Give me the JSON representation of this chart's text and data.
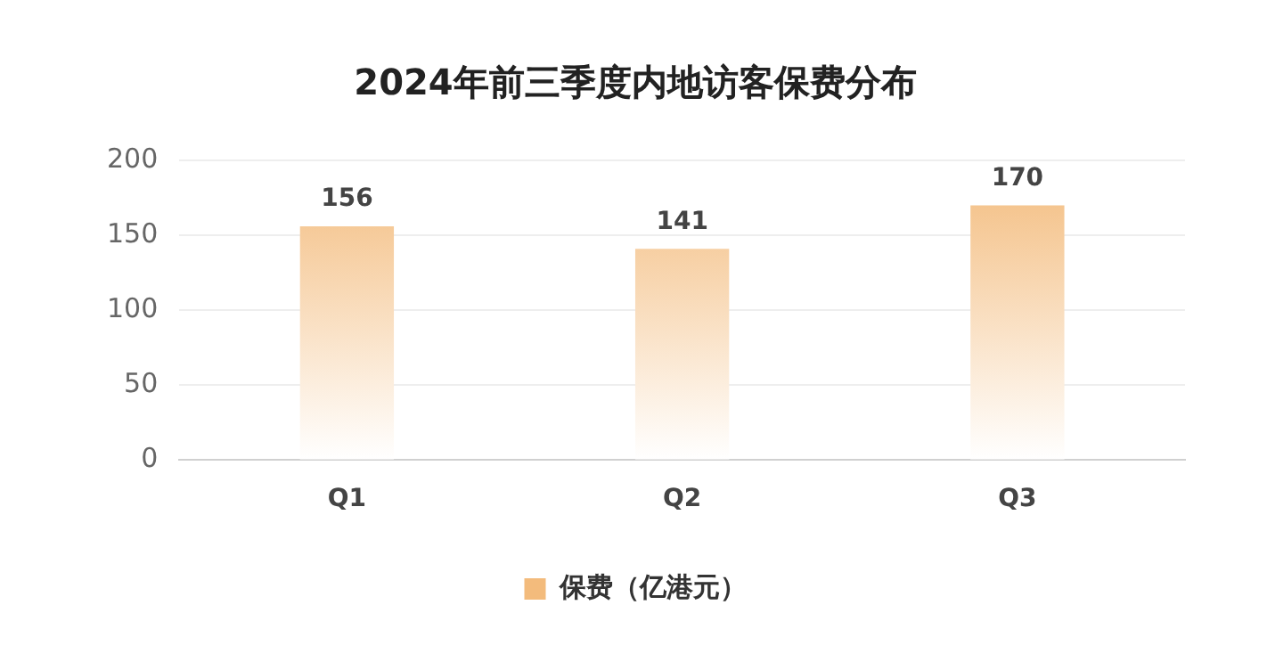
{
  "chart_data": {
    "type": "bar",
    "title": "2024年前三季度内地访客保费分布",
    "categories": [
      "Q1",
      "Q2",
      "Q3"
    ],
    "series": [
      {
        "name": "保费（亿港元）",
        "color": "#f3bb7c",
        "values": [
          156,
          141,
          170
        ]
      }
    ],
    "ylim": [
      0,
      200
    ],
    "yticks": [
      0,
      50,
      100,
      150,
      200
    ],
    "grid": "y",
    "legend": "bottom",
    "data_labels": true
  }
}
